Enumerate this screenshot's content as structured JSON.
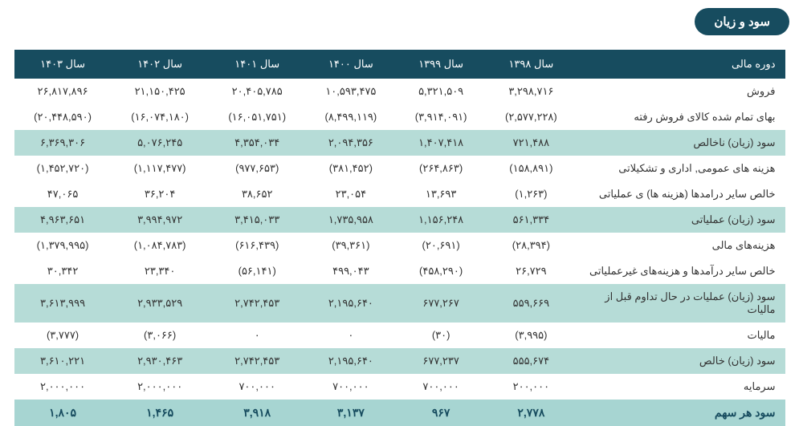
{
  "title": "سود و زیان",
  "colors": {
    "header_bg": "#174c5f",
    "header_fg": "#ffffff",
    "row_plain_bg": "#ffffff",
    "row_tint_bg": "#b6dcd7",
    "row_bold_bg": "#a7d5d2",
    "neg_color": "#e04a4a",
    "text_color": "#333333"
  },
  "header": {
    "label": "دوره مالی",
    "years": [
      "سال ۱۳۹۸",
      "سال ۱۳۹۹",
      "سال ۱۴۰۰",
      "سال ۱۴۰۱",
      "سال ۱۴۰۲",
      "سال ۱۴۰۳"
    ]
  },
  "rows": [
    {
      "style": "plain",
      "label": "فروش",
      "cells": [
        "۳,۲۹۸,۷۱۶",
        "۵,۳۲۱,۵۰۹",
        "۱۰,۵۹۳,۴۷۵",
        "۲۰,۴۰۵,۷۸۵",
        "۲۱,۱۵۰,۴۲۵",
        "۲۶,۸۱۷,۸۹۶"
      ],
      "neg": [
        false,
        false,
        false,
        false,
        false,
        false
      ]
    },
    {
      "style": "plain",
      "label": "بهای تمام شده کالای فروش رفته",
      "cells": [
        "(۲,۵۷۷,۲۲۸)",
        "(۳,۹۱۴,۰۹۱)",
        "(۸,۴۹۹,۱۱۹)",
        "(۱۶,۰۵۱,۷۵۱)",
        "(۱۶,۰۷۴,۱۸۰)",
        "(۲۰,۴۴۸,۵۹۰)"
      ],
      "neg": [
        true,
        true,
        true,
        true,
        true,
        true
      ]
    },
    {
      "style": "tint",
      "label": "سود (زیان) ناخالص",
      "cells": [
        "۷۲۱,۴۸۸",
        "۱,۴۰۷,۴۱۸",
        "۲,۰۹۴,۳۵۶",
        "۴,۳۵۴,۰۳۴",
        "۵,۰۷۶,۲۴۵",
        "۶,۳۶۹,۳۰۶"
      ],
      "neg": [
        false,
        false,
        false,
        false,
        false,
        false
      ]
    },
    {
      "style": "plain",
      "label": "هزینه های عمومی, اداری و تشکیلاتی",
      "cells": [
        "(۱۵۸,۸۹۱)",
        "(۲۶۴,۸۶۳)",
        "(۳۸۱,۴۵۲)",
        "(۹۷۷,۶۵۳)",
        "(۱,۱۱۷,۴۷۷)",
        "(۱,۴۵۲,۷۲۰)"
      ],
      "neg": [
        true,
        true,
        true,
        true,
        true,
        true
      ]
    },
    {
      "style": "plain",
      "label": "خالص سایر درامدها (هزینه ها) ی عملیاتی",
      "cells": [
        "(۱,۲۶۳)",
        "۱۳,۶۹۳",
        "۲۳,۰۵۴",
        "۳۸,۶۵۲",
        "۳۶,۲۰۴",
        "۴۷,۰۶۵"
      ],
      "neg": [
        true,
        false,
        false,
        false,
        false,
        false
      ]
    },
    {
      "style": "tint",
      "label": "سود (زیان) عملیاتی",
      "cells": [
        "۵۶۱,۳۳۴",
        "۱,۱۵۶,۲۴۸",
        "۱,۷۳۵,۹۵۸",
        "۳,۴۱۵,۰۳۳",
        "۳,۹۹۴,۹۷۲",
        "۴,۹۶۳,۶۵۱"
      ],
      "neg": [
        false,
        false,
        false,
        false,
        false,
        false
      ]
    },
    {
      "style": "plain",
      "label": "هزینه‌های مالی",
      "cells": [
        "(۲۸,۳۹۴)",
        "(۲۰,۶۹۱)",
        "(۳۹,۳۶۱)",
        "(۶۱۶,۴۳۹)",
        "(۱,۰۸۴,۷۸۳)",
        "(۱,۳۷۹,۹۹۵)"
      ],
      "neg": [
        true,
        true,
        true,
        true,
        true,
        true
      ]
    },
    {
      "style": "plain",
      "label": "خالص سایر درآمدها و هزینه‌های غیرعملیاتی",
      "cells": [
        "۲۶,۷۲۹",
        "(۴۵۸,۲۹۰)",
        "۴۹۹,۰۴۳",
        "(۵۶,۱۴۱)",
        "۲۳,۳۴۰",
        "۳۰,۳۴۲"
      ],
      "neg": [
        false,
        true,
        false,
        true,
        false,
        false
      ]
    },
    {
      "style": "tint",
      "label": "سود (زیان) عملیات در حال تداوم قبل از مالیات",
      "cells": [
        "۵۵۹,۶۶۹",
        "۶۷۷,۲۶۷",
        "۲,۱۹۵,۶۴۰",
        "۲,۷۴۲,۴۵۳",
        "۲,۹۳۳,۵۲۹",
        "۳,۶۱۳,۹۹۹"
      ],
      "neg": [
        false,
        false,
        false,
        false,
        false,
        false
      ]
    },
    {
      "style": "plain",
      "label": "مالیات",
      "cells": [
        "(۳,۹۹۵)",
        "(۳۰)",
        "۰",
        "۰",
        "(۳,۰۶۶)",
        "(۳,۷۷۷)"
      ],
      "neg": [
        true,
        true,
        false,
        false,
        true,
        true
      ]
    },
    {
      "style": "tint",
      "label": "سود (زیان) خالص",
      "cells": [
        "۵۵۵,۶۷۴",
        "۶۷۷,۲۳۷",
        "۲,۱۹۵,۶۴۰",
        "۲,۷۴۲,۴۵۳",
        "۲,۹۳۰,۴۶۳",
        "۳,۶۱۰,۲۲۱"
      ],
      "neg": [
        false,
        false,
        false,
        false,
        false,
        false
      ]
    },
    {
      "style": "plain",
      "label": "سرمایه",
      "cells": [
        "۲۰۰,۰۰۰",
        "۷۰۰,۰۰۰",
        "۷۰۰,۰۰۰",
        "۷۰۰,۰۰۰",
        "۲,۰۰۰,۰۰۰",
        "۲,۰۰۰,۰۰۰"
      ],
      "neg": [
        false,
        false,
        false,
        false,
        false,
        false
      ]
    },
    {
      "style": "bold",
      "label": "سود هر سهم",
      "cells": [
        "۲,۷۷۸",
        "۹۶۷",
        "۳,۱۳۷",
        "۳,۹۱۸",
        "۱,۴۶۵",
        "۱,۸۰۵"
      ],
      "neg": [
        false,
        false,
        false,
        false,
        false,
        false
      ]
    }
  ]
}
